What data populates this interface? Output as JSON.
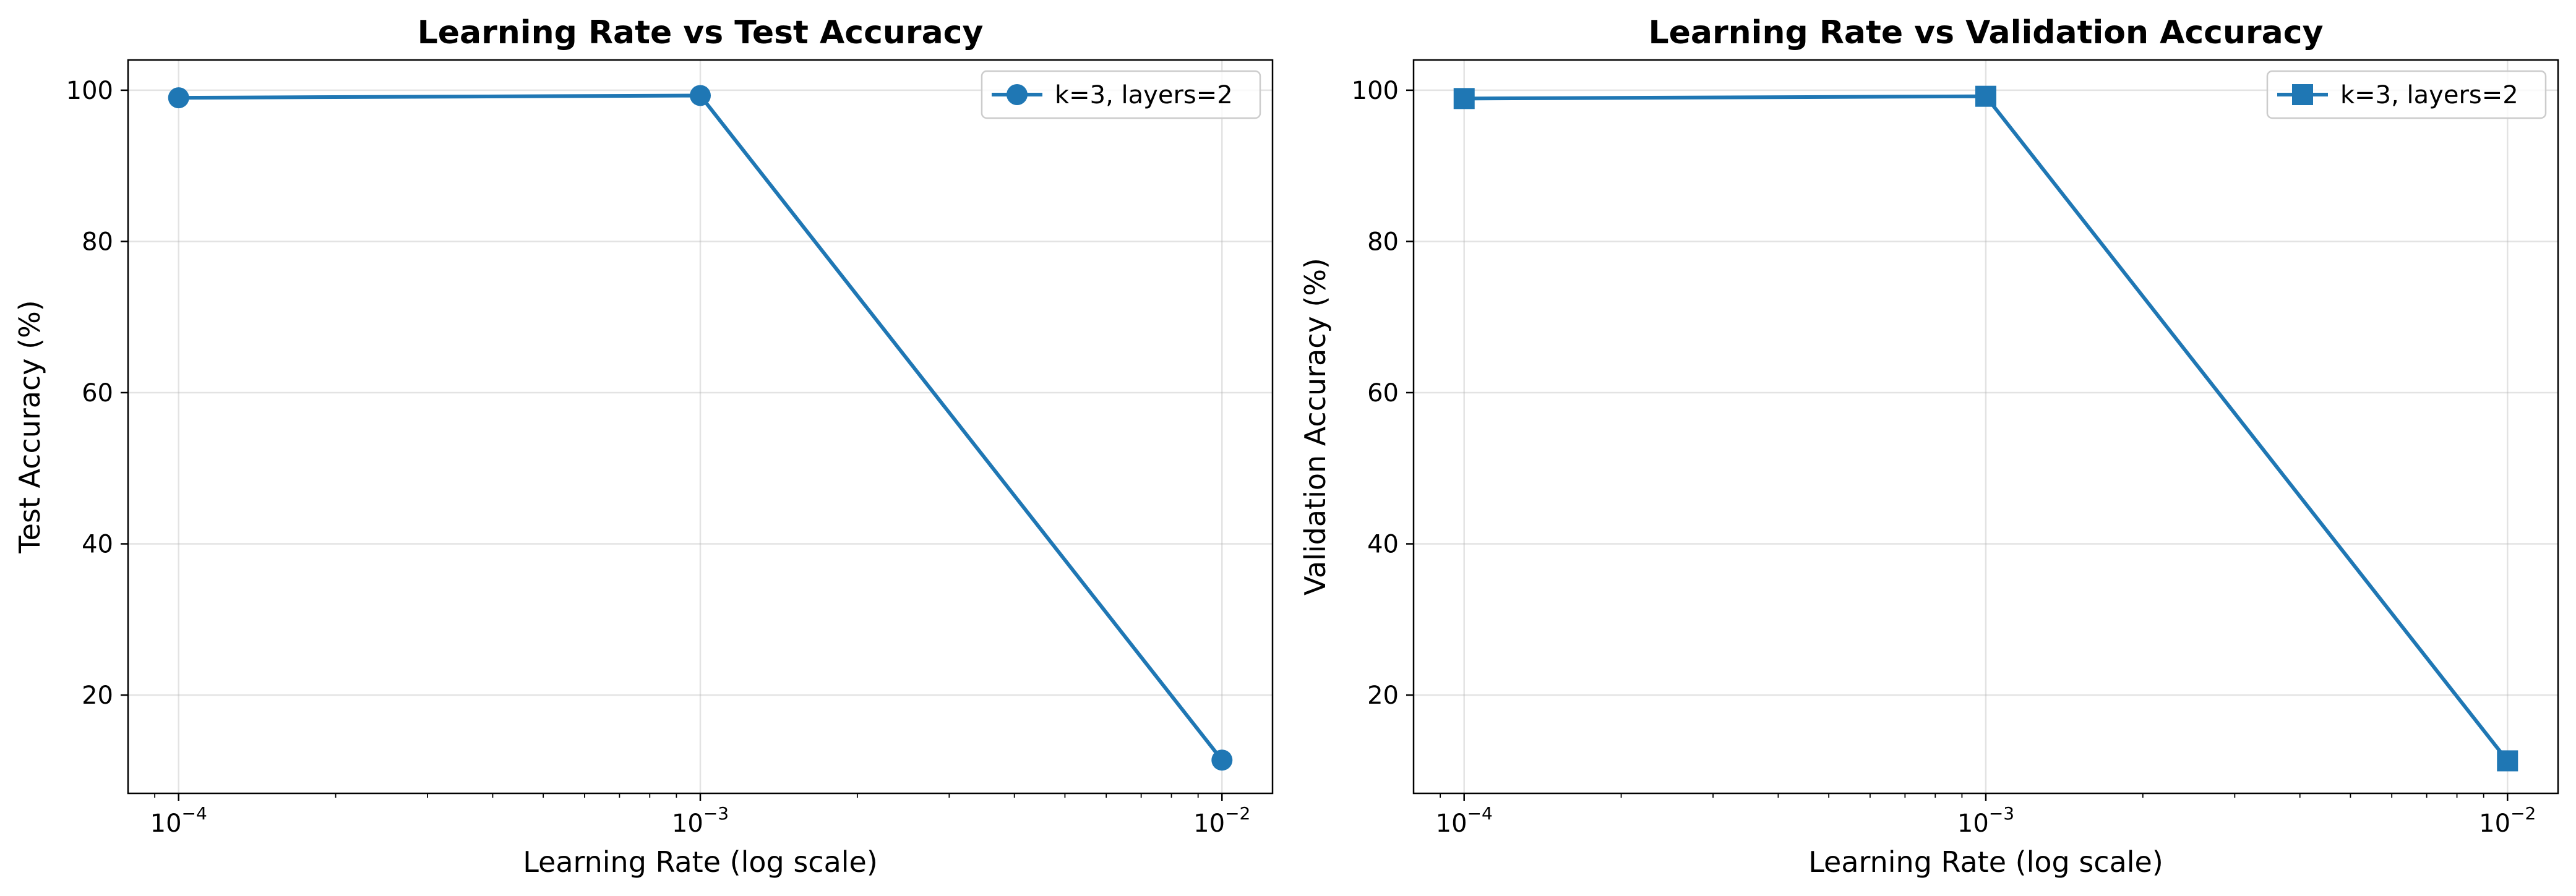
{
  "chart_data": [
    {
      "type": "line",
      "title": "Learning Rate vs Test Accuracy",
      "xlabel": "Learning Rate (log scale)",
      "ylabel": "Test Accuracy (%)",
      "xscale": "log",
      "xlim": [
        8e-05,
        0.0125
      ],
      "ylim": [
        7,
        104
      ],
      "grid": true,
      "legend_position": "top-right",
      "marker": "circle",
      "color": "#1f77b4",
      "x_ticks": [
        {
          "value": 0.0001,
          "base": "10",
          "exp": "−4"
        },
        {
          "value": 0.001,
          "base": "10",
          "exp": "−3"
        },
        {
          "value": 0.01,
          "base": "10",
          "exp": "−2"
        }
      ],
      "y_ticks": [
        20,
        40,
        60,
        80,
        100
      ],
      "series": [
        {
          "name": "k=3, layers=2",
          "x": [
            0.0001,
            0.001,
            0.01
          ],
          "y": [
            99.0,
            99.3,
            11.4
          ]
        }
      ]
    },
    {
      "type": "line",
      "title": "Learning Rate vs Validation Accuracy",
      "xlabel": "Learning Rate (log scale)",
      "ylabel": "Validation Accuracy (%)",
      "xscale": "log",
      "xlim": [
        8e-05,
        0.0125
      ],
      "ylim": [
        7,
        104
      ],
      "grid": true,
      "legend_position": "top-right",
      "marker": "square",
      "color": "#1f77b4",
      "x_ticks": [
        {
          "value": 0.0001,
          "base": "10",
          "exp": "−4"
        },
        {
          "value": 0.001,
          "base": "10",
          "exp": "−3"
        },
        {
          "value": 0.01,
          "base": "10",
          "exp": "−2"
        }
      ],
      "y_ticks": [
        20,
        40,
        60,
        80,
        100
      ],
      "series": [
        {
          "name": "k=3, layers=2",
          "x": [
            0.0001,
            0.001,
            0.01
          ],
          "y": [
            98.9,
            99.2,
            11.3
          ]
        }
      ]
    }
  ]
}
